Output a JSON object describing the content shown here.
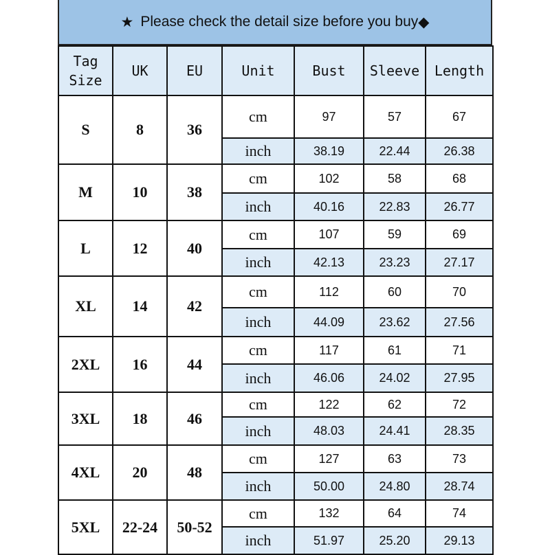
{
  "title": {
    "star_icon": "★",
    "text": "Please check the detail size before you buy",
    "diamond_icon": "◆"
  },
  "colors": {
    "title_bg": "#9dc3e6",
    "header_bg": "#ddebf7",
    "inch_row_bg": "#ddebf7",
    "border": "#111111"
  },
  "headers": [
    "Tag Size",
    "UK",
    "EU",
    "Unit",
    "Bust",
    "Sleeve",
    "Length"
  ],
  "units": {
    "cm": "cm",
    "inch": "inch"
  },
  "rows": [
    {
      "tag": "S",
      "uk": "8",
      "eu": "36",
      "cm": [
        "97",
        "57",
        "67"
      ],
      "inch": [
        "38.19",
        "22.44",
        "26.38"
      ]
    },
    {
      "tag": "M",
      "uk": "10",
      "eu": "38",
      "cm": [
        "102",
        "58",
        "68"
      ],
      "inch": [
        "40.16",
        "22.83",
        "26.77"
      ]
    },
    {
      "tag": "L",
      "uk": "12",
      "eu": "40",
      "cm": [
        "107",
        "59",
        "69"
      ],
      "inch": [
        "42.13",
        "23.23",
        "27.17"
      ]
    },
    {
      "tag": "XL",
      "uk": "14",
      "eu": "42",
      "cm": [
        "112",
        "60",
        "70"
      ],
      "inch": [
        "44.09",
        "23.62",
        "27.56"
      ]
    },
    {
      "tag": "2XL",
      "uk": "16",
      "eu": "44",
      "cm": [
        "117",
        "61",
        "71"
      ],
      "inch": [
        "46.06",
        "24.02",
        "27.95"
      ]
    },
    {
      "tag": "3XL",
      "uk": "18",
      "eu": "46",
      "cm": [
        "122",
        "62",
        "72"
      ],
      "inch": [
        "48.03",
        "24.41",
        "28.35"
      ]
    },
    {
      "tag": "4XL",
      "uk": "20",
      "eu": "48",
      "cm": [
        "127",
        "63",
        "73"
      ],
      "inch": [
        "50.00",
        "24.80",
        "28.74"
      ]
    },
    {
      "tag": "5XL",
      "uk": "22-24",
      "eu": "50-52",
      "cm": [
        "132",
        "64",
        "74"
      ],
      "inch": [
        "51.97",
        "25.20",
        "29.13"
      ]
    }
  ]
}
